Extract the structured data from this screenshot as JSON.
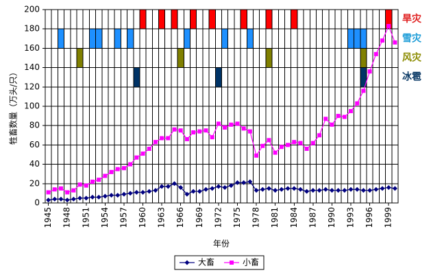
{
  "chart_data": {
    "type": "line",
    "xlabel": "年份",
    "ylabel": "牲畜数量（万头/只）",
    "x": [
      1945,
      1946,
      1947,
      1948,
      1949,
      1950,
      1951,
      1952,
      1953,
      1954,
      1955,
      1956,
      1957,
      1958,
      1959,
      1960,
      1961,
      1962,
      1963,
      1964,
      1965,
      1966,
      1967,
      1968,
      1969,
      1970,
      1971,
      1972,
      1973,
      1974,
      1975,
      1976,
      1977,
      1978,
      1979,
      1980,
      1981,
      1982,
      1983,
      1984,
      1985,
      1986,
      1987,
      1988,
      1989,
      1990,
      1991,
      1992,
      1993,
      1994,
      1995,
      1996,
      1997,
      1998,
      1999,
      2000
    ],
    "xlim": [
      1944.5,
      2000.5
    ],
    "xticks": [
      1945,
      1948,
      1951,
      1954,
      1957,
      1960,
      1963,
      1966,
      1969,
      1972,
      1975,
      1978,
      1981,
      1984,
      1987,
      1990,
      1993,
      1996,
      1999
    ],
    "ylim": [
      0,
      200
    ],
    "yticks": [
      0,
      20,
      40,
      60,
      80,
      100,
      120,
      140,
      160,
      180,
      200
    ],
    "grid": true,
    "series": [
      {
        "name": "大畜",
        "color": "#000080",
        "marker": "diamond",
        "values": [
          3,
          4,
          4,
          3,
          4,
          5,
          5,
          6,
          6,
          7,
          8,
          8,
          9,
          10,
          11,
          11,
          12,
          13,
          17,
          17,
          20,
          16,
          9,
          12,
          12,
          14,
          15,
          17,
          16,
          18,
          21,
          21,
          22,
          13,
          14,
          15,
          13,
          14,
          15,
          15,
          14,
          12,
          13,
          13,
          14,
          13,
          13,
          13,
          14,
          14,
          13,
          13,
          14,
          15,
          16,
          15
        ]
      },
      {
        "name": "小畜",
        "color": "#ff00ff",
        "marker": "square",
        "values": [
          11,
          14,
          15,
          11,
          13,
          19,
          18,
          22,
          24,
          28,
          32,
          35,
          36,
          40,
          47,
          51,
          56,
          63,
          67,
          67,
          76,
          75,
          66,
          73,
          74,
          75,
          68,
          82,
          78,
          81,
          82,
          77,
          74,
          49,
          59,
          65,
          52,
          58,
          60,
          63,
          62,
          56,
          62,
          70,
          87,
          81,
          90,
          89,
          95,
          103,
          116,
          136,
          154,
          168,
          183,
          166
        ]
      }
    ],
    "legend": "bottom",
    "disasters": [
      {
        "name": "旱灾",
        "color": "#ff0000",
        "label_color": "#e02020",
        "band": [
          180,
          200
        ],
        "years": [
          1960,
          1963,
          1965,
          1968,
          1971,
          1976,
          1980,
          1984,
          1999
        ]
      },
      {
        "name": "雪灾",
        "color": "#1e90ff",
        "label_color": "#1a9bd7",
        "band": [
          160,
          180
        ],
        "years": [
          1947,
          1952,
          1953,
          1956,
          1958,
          1967,
          1973,
          1977,
          1993,
          1994,
          1995
        ]
      },
      {
        "name": "风灾",
        "color": "#808000",
        "label_color": "#8b8b00",
        "band": [
          140,
          160
        ],
        "years": [
          1950,
          1966,
          1980,
          1995
        ]
      },
      {
        "name": "冰雹",
        "color": "#003366",
        "label_color": "#0b3a66",
        "band": [
          120,
          140
        ],
        "years": [
          1959,
          1972,
          1995
        ]
      }
    ]
  }
}
